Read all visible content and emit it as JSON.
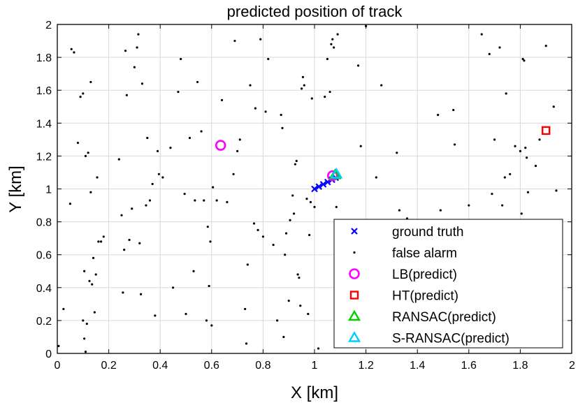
{
  "chart_data": {
    "type": "scatter",
    "title": "predicted position of track",
    "xlabel": "X [km]",
    "ylabel": "Y [km]",
    "xlim": [
      0,
      2
    ],
    "ylim": [
      0,
      2
    ],
    "xticks": [
      "0",
      "0.2",
      "0.4",
      "0.6",
      "0.8",
      "1",
      "1.2",
      "1.4",
      "1.6",
      "1.8",
      "2"
    ],
    "yticks": [
      "0",
      "0.2",
      "0.4",
      "0.6",
      "0.8",
      "1",
      "1.2",
      "1.4",
      "1.6",
      "1.8",
      "2"
    ],
    "grid": true,
    "legend_position": "bottom-right",
    "series": [
      {
        "name": "ground truth",
        "marker": "x",
        "color": "#0000ff",
        "points": [
          [
            1.0,
            1.0
          ],
          [
            1.017,
            1.014
          ],
          [
            1.034,
            1.028
          ],
          [
            1.051,
            1.042
          ],
          [
            1.068,
            1.056
          ],
          [
            1.082,
            1.068
          ]
        ]
      },
      {
        "name": "false alarm",
        "marker": "dot",
        "color": "#000000",
        "points": [
          [
            0.005,
            0.045
          ],
          [
            0.024,
            0.27
          ],
          [
            0.055,
            1.85
          ],
          [
            0.065,
            1.83
          ],
          [
            0.08,
            1.28
          ],
          [
            0.09,
            1.56
          ],
          [
            0.1,
            0.2
          ],
          [
            0.1,
            1.58
          ],
          [
            0.105,
            0.5
          ],
          [
            0.11,
            1.2
          ],
          [
            0.115,
            0.18
          ],
          [
            0.12,
            1.22
          ],
          [
            0.125,
            0.44
          ],
          [
            0.13,
            0.98
          ],
          [
            0.13,
            1.65
          ],
          [
            0.135,
            0.42
          ],
          [
            0.14,
            0.58
          ],
          [
            0.145,
            0.25
          ],
          [
            0.15,
            0.48
          ],
          [
            0.155,
            1.07
          ],
          [
            0.16,
            0.68
          ],
          [
            0.17,
            0.68
          ],
          [
            0.18,
            0.71
          ],
          [
            0.05,
            0.91
          ],
          [
            0.105,
            0.09
          ],
          [
            0.11,
            0.01
          ],
          [
            0.24,
            1.18
          ],
          [
            0.25,
            0.84
          ],
          [
            0.255,
            0.37
          ],
          [
            0.26,
            0.63
          ],
          [
            0.265,
            1.84
          ],
          [
            0.27,
            1.57
          ],
          [
            0.28,
            0.69
          ],
          [
            0.29,
            0.88
          ],
          [
            0.3,
            1.74
          ],
          [
            0.31,
            1.86
          ],
          [
            0.315,
            1.94
          ],
          [
            0.32,
            0.67
          ],
          [
            0.325,
            0.36
          ],
          [
            0.33,
            1.64
          ],
          [
            0.345,
            0.9
          ],
          [
            0.35,
            1.31
          ],
          [
            0.36,
            0.93
          ],
          [
            0.37,
            1.03
          ],
          [
            0.38,
            0.23
          ],
          [
            0.39,
            1.23
          ],
          [
            0.395,
            1.09
          ],
          [
            0.41,
            1.07
          ],
          [
            0.44,
            1.25
          ],
          [
            0.45,
            0.4
          ],
          [
            0.47,
            1.59
          ],
          [
            0.48,
            1.79
          ],
          [
            0.495,
            0.97
          ],
          [
            0.5,
            0.24
          ],
          [
            0.515,
            1.31
          ],
          [
            0.53,
            0.5
          ],
          [
            0.535,
            0.93
          ],
          [
            0.545,
            1.65
          ],
          [
            0.56,
            1.35
          ],
          [
            0.57,
            0.93
          ],
          [
            0.58,
            0.2
          ],
          [
            0.585,
            0.77
          ],
          [
            0.59,
            0.41
          ],
          [
            0.595,
            0.68
          ],
          [
            0.6,
            0.17
          ],
          [
            0.605,
            1.01
          ],
          [
            0.62,
            0.93
          ],
          [
            0.64,
            1.54
          ],
          [
            0.66,
            0.92
          ],
          [
            0.685,
            1.09
          ],
          [
            0.69,
            1.9
          ],
          [
            0.7,
            1.23
          ],
          [
            0.71,
            1.3
          ],
          [
            0.73,
            0.27
          ],
          [
            0.735,
            0.06
          ],
          [
            0.74,
            0.54
          ],
          [
            0.75,
            1.63
          ],
          [
            0.765,
            0.79
          ],
          [
            0.77,
            1.49
          ],
          [
            0.78,
            0.75
          ],
          [
            0.79,
            1.91
          ],
          [
            0.8,
            0.71
          ],
          [
            0.81,
            1.47
          ],
          [
            0.82,
            1.79
          ],
          [
            0.84,
            0.66
          ],
          [
            0.855,
            0.2
          ],
          [
            0.87,
            1.45
          ],
          [
            0.875,
            1.37
          ],
          [
            0.88,
            0.1
          ],
          [
            0.885,
            0.6
          ],
          [
            0.89,
            0.73
          ],
          [
            0.9,
            0.32
          ],
          [
            0.905,
            0.81
          ],
          [
            0.915,
            0.96
          ],
          [
            0.92,
            0.85
          ],
          [
            0.925,
            1.15
          ],
          [
            0.93,
            1.17
          ],
          [
            0.935,
            0.48
          ],
          [
            0.94,
            0.46
          ],
          [
            0.945,
            0.29
          ],
          [
            0.95,
            1.61
          ],
          [
            0.955,
            1.68
          ],
          [
            0.96,
            1.63
          ],
          [
            0.97,
            0.94
          ],
          [
            0.975,
            0.24
          ],
          [
            0.98,
            0.72
          ],
          [
            0.985,
            0.92
          ],
          [
            0.99,
            1.55
          ],
          [
            1.0,
            0.89
          ],
          [
            1.015,
            0.03
          ],
          [
            1.04,
            1.56
          ],
          [
            1.05,
            1.79
          ],
          [
            1.06,
            1.59
          ],
          [
            1.065,
            1.88
          ],
          [
            1.07,
            1.91
          ],
          [
            1.075,
            1.86
          ],
          [
            1.085,
            0.89
          ],
          [
            1.09,
            1.94
          ],
          [
            1.17,
            1.75
          ],
          [
            1.18,
            1.26
          ],
          [
            1.19,
            0.74
          ],
          [
            1.2,
            1.99
          ],
          [
            1.24,
            1.07
          ],
          [
            1.26,
            1.63
          ],
          [
            1.32,
            1.22
          ],
          [
            1.33,
            0.87
          ],
          [
            1.36,
            0.82
          ],
          [
            1.48,
            1.45
          ],
          [
            1.49,
            0.87
          ],
          [
            1.54,
            1.48
          ],
          [
            1.545,
            1.27
          ],
          [
            1.58,
            0.78
          ],
          [
            1.6,
            0.9
          ],
          [
            1.65,
            1.94
          ],
          [
            1.68,
            1.82
          ],
          [
            1.69,
            0.97
          ],
          [
            1.7,
            1.3
          ],
          [
            1.72,
            1.86
          ],
          [
            1.73,
            0.9
          ],
          [
            1.74,
            1.07
          ],
          [
            1.745,
            1.58
          ],
          [
            1.76,
            1.09
          ],
          [
            1.78,
            1.26
          ],
          [
            1.8,
            1.23
          ],
          [
            1.805,
            0.85
          ],
          [
            1.81,
            1.79
          ],
          [
            1.815,
            1.78
          ],
          [
            1.82,
            1.25
          ],
          [
            1.825,
            1.19
          ],
          [
            1.83,
            0.98
          ],
          [
            1.86,
            1.14
          ],
          [
            1.875,
            1.3
          ],
          [
            1.9,
            1.87
          ],
          [
            1.93,
            1.5
          ],
          [
            1.94,
            0.99
          ]
        ]
      },
      {
        "name": "LB(predict)",
        "marker": "circle",
        "color": "#ff00ff",
        "points": [
          [
            0.635,
            1.265
          ],
          [
            1.07,
            1.08
          ]
        ]
      },
      {
        "name": "HT(predict)",
        "marker": "square",
        "color": "#ff0000",
        "points": [
          [
            1.9,
            1.355
          ]
        ]
      },
      {
        "name": "RANSAC(predict)",
        "marker": "triangle",
        "color": "#00d000",
        "points": [
          [
            1.08,
            1.085
          ]
        ]
      },
      {
        "name": "S-RANSAC(predict)",
        "marker": "triangle",
        "color": "#00ccff",
        "points": [
          [
            1.085,
            1.09
          ]
        ]
      }
    ]
  }
}
